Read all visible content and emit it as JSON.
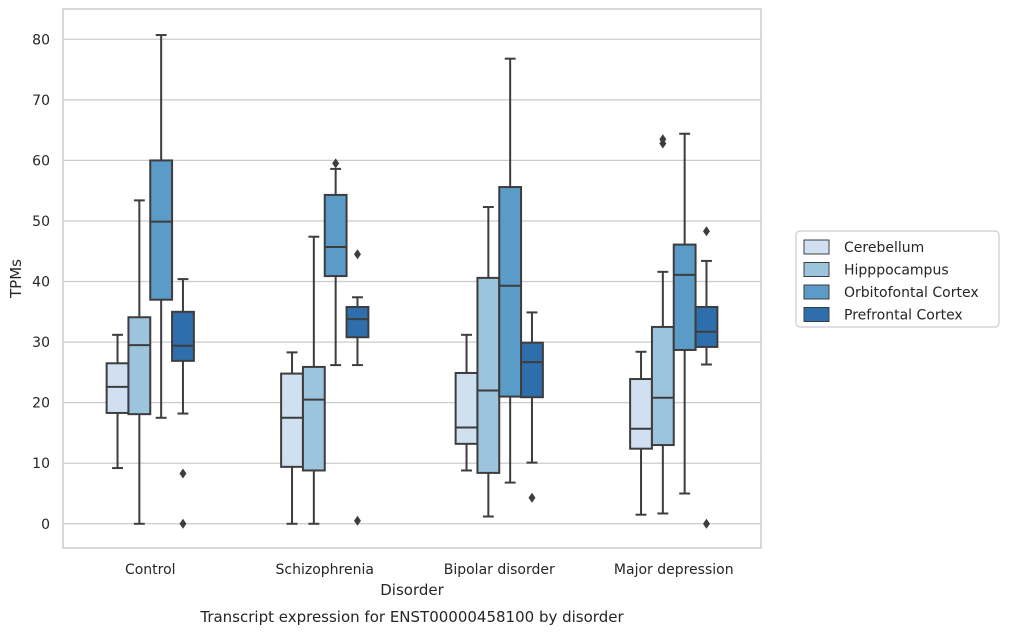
{
  "chart_data": {
    "type": "boxplot",
    "caption": "Transcript expression for ENST00000458100 by disorder",
    "xlabel": "Disorder",
    "ylabel": "TPMs",
    "ylim": [
      -4,
      85
    ],
    "yticks": [
      0,
      10,
      20,
      30,
      40,
      50,
      60,
      70,
      80
    ],
    "grid": true,
    "legend_position": "right",
    "categories": [
      "Control",
      "Schizophrenia",
      "Bipolar disorder",
      "Major depression"
    ],
    "series": [
      {
        "name": "Cerebellum",
        "color": "#d0e0f0",
        "boxes": [
          {
            "whislo": 9.2,
            "q1": 18.3,
            "med": 22.6,
            "q3": 26.5,
            "whishi": 31.2,
            "fliers": []
          },
          {
            "whislo": 0,
            "q1": 9.4,
            "med": 17.5,
            "q3": 24.8,
            "whishi": 28.3,
            "fliers": []
          },
          {
            "whislo": 8.8,
            "q1": 13.2,
            "med": 15.9,
            "q3": 24.9,
            "whishi": 31.2,
            "fliers": []
          },
          {
            "whislo": 1.5,
            "q1": 12.4,
            "med": 15.7,
            "q3": 23.9,
            "whishi": 28.4,
            "fliers": []
          }
        ]
      },
      {
        "name": "Hipppocampus",
        "color": "#9cc4dd",
        "boxes": [
          {
            "whislo": 0,
            "q1": 18.1,
            "med": 29.5,
            "q3": 34.1,
            "whishi": 53.4,
            "fliers": []
          },
          {
            "whislo": 0,
            "q1": 8.8,
            "med": 20.5,
            "q3": 25.9,
            "whishi": 47.4,
            "fliers": []
          },
          {
            "whislo": 1.2,
            "q1": 8.4,
            "med": 22.0,
            "q3": 40.6,
            "whishi": 52.3,
            "fliers": []
          },
          {
            "whislo": 1.7,
            "q1": 13.0,
            "med": 20.8,
            "q3": 32.5,
            "whishi": 41.6,
            "fliers": [
              62.8,
              63.5
            ]
          }
        ]
      },
      {
        "name": "Orbitofontal Cortex",
        "color": "#5a9bc8",
        "boxes": [
          {
            "whislo": 17.5,
            "q1": 37.0,
            "med": 49.9,
            "q3": 60.0,
            "whishi": 80.7,
            "fliers": []
          },
          {
            "whislo": 26.2,
            "q1": 40.9,
            "med": 45.7,
            "q3": 54.3,
            "whishi": 58.6,
            "fliers": [
              59.5
            ]
          },
          {
            "whislo": 6.8,
            "q1": 21.0,
            "med": 39.3,
            "q3": 55.6,
            "whishi": 76.8,
            "fliers": []
          },
          {
            "whislo": 5.0,
            "q1": 28.7,
            "med": 41.1,
            "q3": 46.1,
            "whishi": 64.4,
            "fliers": []
          }
        ]
      },
      {
        "name": "Prefrontal Cortex",
        "color": "#2f6eac",
        "boxes": [
          {
            "whislo": 18.2,
            "q1": 26.9,
            "med": 29.4,
            "q3": 35.0,
            "whishi": 40.4,
            "fliers": [
              8.3,
              0
            ]
          },
          {
            "whislo": 26.2,
            "q1": 30.8,
            "med": 33.8,
            "q3": 35.8,
            "whishi": 37.4,
            "fliers": [
              44.5,
              0.5
            ]
          },
          {
            "whislo": 10.1,
            "q1": 20.9,
            "med": 26.7,
            "q3": 29.9,
            "whishi": 34.9,
            "fliers": [
              4.3
            ]
          },
          {
            "whislo": 26.3,
            "q1": 29.2,
            "med": 31.7,
            "q3": 35.8,
            "whishi": 43.4,
            "fliers": [
              48.3,
              0
            ]
          }
        ]
      }
    ]
  }
}
